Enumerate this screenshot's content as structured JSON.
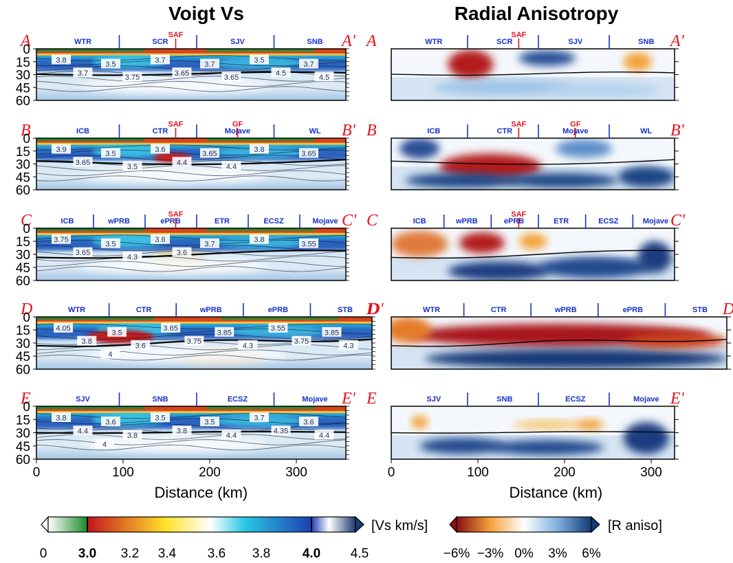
{
  "figure": {
    "titles": [
      "Voigt Vs",
      "Radial Anisotropy"
    ],
    "xlabel": "Distance (km)",
    "depth_ticks": [
      "0",
      "15",
      "30",
      "45",
      "60"
    ],
    "dist_ticks": [
      "0",
      "100",
      "200",
      "300"
    ]
  },
  "chart_data": [
    {
      "type": "heatmap",
      "title": "Voigt Vs",
      "xlabel": "Distance (km)",
      "ylabel": "",
      "xlim": [
        0,
        380
      ],
      "ylim": [
        60,
        0
      ],
      "y_ticks": [
        0,
        15,
        30,
        45,
        60
      ],
      "x_ticks": [
        0,
        100,
        200,
        300
      ],
      "colorbar": {
        "label": "[Vs km/s]",
        "ticks": [
          "0",
          "3.0",
          "3.2",
          "3.4",
          "3.6",
          "3.8",
          "4.0",
          "4.5"
        ],
        "colors": {
          "green": "#1a8a2a",
          "red": "#c4141b",
          "yellow": "#ffe22a",
          "cyan": "#29c8e6",
          "blue": "#1f3fb0",
          "white": "#ffffff",
          "navy": "#1c3a72"
        }
      },
      "profiles": [
        {
          "start": "A",
          "end": "A'",
          "regions": [
            "WTR",
            "SCR",
            "SJV",
            "SNB"
          ],
          "faults": [
            "SAF"
          ],
          "contour_labels": [
            "3.8",
            "3.5",
            "3.7",
            "3.7",
            "3.5",
            "3.7",
            "3.7",
            "3.75",
            "3.65",
            "3.65",
            "4.5",
            "4.5"
          ]
        },
        {
          "start": "B",
          "end": "B'",
          "regions": [
            "ICB",
            "CTR",
            "Mojave",
            "WL"
          ],
          "faults": [
            "SAF",
            "GF"
          ],
          "contour_labels": [
            "3.9",
            "3.5",
            "3.6",
            "3.65",
            "3.8",
            "3.65",
            "3.65",
            "3.5",
            "4.4",
            "4.4"
          ]
        },
        {
          "start": "C",
          "end": "C'",
          "regions": [
            "ICB",
            "wPRB",
            "ePRB",
            "ETR",
            "ECSZ",
            "Mojave"
          ],
          "faults": [
            "SAF"
          ],
          "contour_labels": [
            "3.75",
            "3.5",
            "3.6",
            "3.7",
            "3.8",
            "3.55",
            "3.65",
            "4.3",
            "3.6"
          ]
        },
        {
          "start": "D",
          "end": "D'",
          "regions": [
            "WTR",
            "CTR",
            "wPRB",
            "ePRB",
            "STB"
          ],
          "faults": [],
          "contour_labels": [
            "4.05",
            "3.5",
            "3.65",
            "3.85",
            "3.55",
            "3.85",
            "3.8",
            "3.6",
            "3.75",
            "4.3",
            "3.75",
            "4.3",
            "4"
          ]
        },
        {
          "start": "E",
          "end": "E'",
          "regions": [
            "SJV",
            "SNB",
            "ECSZ",
            "Mojave"
          ],
          "faults": [],
          "contour_labels": [
            "3.8",
            "3.6",
            "3.5",
            "3.5",
            "3.7",
            "3.6",
            "4.4",
            "3.8",
            "3.8",
            "4.4",
            "4.35",
            "4.4",
            "4"
          ]
        }
      ]
    },
    {
      "type": "heatmap",
      "title": "Radial Anisotropy",
      "xlabel": "Distance (km)",
      "ylabel": "",
      "xlim": [
        0,
        380
      ],
      "ylim": [
        60,
        0
      ],
      "y_ticks": [
        0,
        15,
        30,
        45,
        60
      ],
      "x_ticks": [
        0,
        100,
        200,
        300
      ],
      "colorbar": {
        "label": "[R aniso]",
        "ticks": [
          "−6%",
          "−3%",
          "0%",
          "3%",
          "6%"
        ],
        "colors": {
          "dark_red": "#8c0d10",
          "orange": "#f4a23a",
          "white": "#ffffff",
          "light_blue": "#7fb0dc",
          "dark_blue": "#123a78"
        }
      },
      "profiles": [
        {
          "start": "A",
          "end": "A'",
          "regions": [
            "WTR",
            "SCR",
            "SJV",
            "SNB"
          ],
          "faults": [
            "SAF"
          ]
        },
        {
          "start": "B",
          "end": "B'",
          "regions": [
            "ICB",
            "CTR",
            "Mojave",
            "WL"
          ],
          "faults": [
            "SAF",
            "GF"
          ]
        },
        {
          "start": "C",
          "end": "C'",
          "regions": [
            "ICB",
            "wPRB",
            "ePRB",
            "ETR",
            "ECSZ",
            "Mojave"
          ],
          "faults": [
            "SAF"
          ]
        },
        {
          "start": "D",
          "end": "D'",
          "regions": [
            "WTR",
            "CTR",
            "wPRB",
            "ePRB",
            "STB"
          ],
          "faults": []
        },
        {
          "start": "E",
          "end": "E'",
          "regions": [
            "SJV",
            "SNB",
            "ECSZ",
            "Mojave"
          ],
          "faults": []
        }
      ]
    }
  ]
}
